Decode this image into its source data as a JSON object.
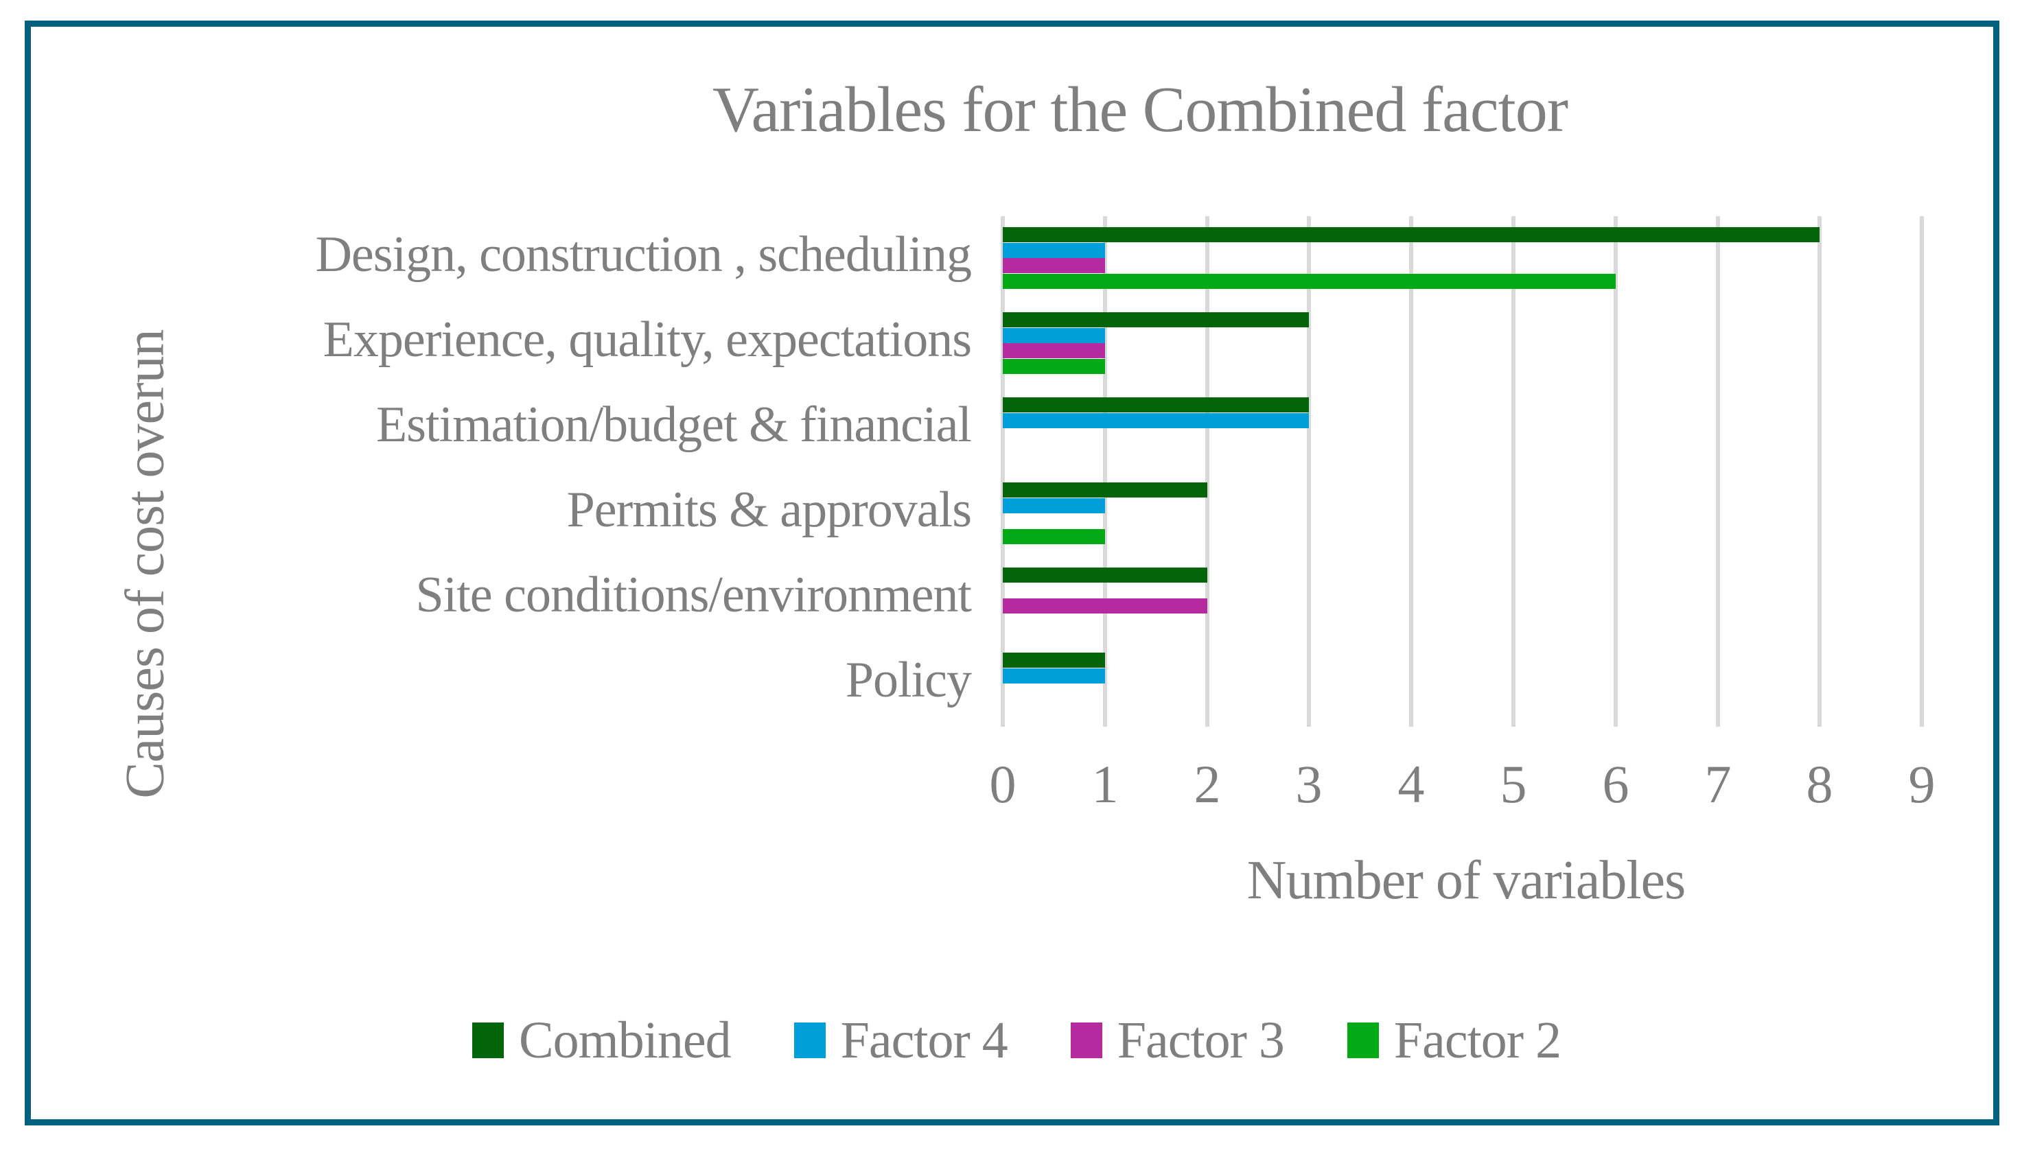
{
  "chart": {
    "title": "Variables for the Combined factor",
    "x_axis_title": "Number of variables",
    "y_axis_title": "Causes of cost overun",
    "colors": {
      "frame_border": "#02617F",
      "gridline": "#D9D9D9",
      "text": "#7f7f7f",
      "combined": "#03640A",
      "factor4": "#009FD9",
      "factor3": "#B52A9E",
      "factor2": "#04AA16"
    }
  },
  "chart_data": {
    "type": "bar",
    "orientation": "horizontal",
    "title": "Variables for the Combined factor",
    "xlabel": "Number of variables",
    "ylabel": "Causes of cost overun",
    "xlim": [
      0,
      9
    ],
    "x_ticks": [
      "0",
      "1",
      "2",
      "3",
      "4",
      "5",
      "6",
      "7",
      "8",
      "9"
    ],
    "grid": true,
    "legend_position": "bottom",
    "categories": [
      "Design, construction , scheduling",
      "Experience, quality, expectations",
      "Estimation/budget & financial",
      "Permits & approvals",
      "Site conditions/environment",
      "Policy"
    ],
    "series": [
      {
        "name": "Combined",
        "color": "#03640A",
        "values": [
          8,
          3,
          3,
          2,
          2,
          1
        ]
      },
      {
        "name": "Factor 4",
        "color": "#009FD9",
        "values": [
          1,
          1,
          3,
          1,
          0,
          1
        ]
      },
      {
        "name": "Factor 3",
        "color": "#B52A9E",
        "values": [
          1,
          1,
          0,
          0,
          2,
          0
        ]
      },
      {
        "name": "Factor 2",
        "color": "#04AA16",
        "values": [
          6,
          1,
          0,
          1,
          0,
          0
        ]
      }
    ]
  }
}
